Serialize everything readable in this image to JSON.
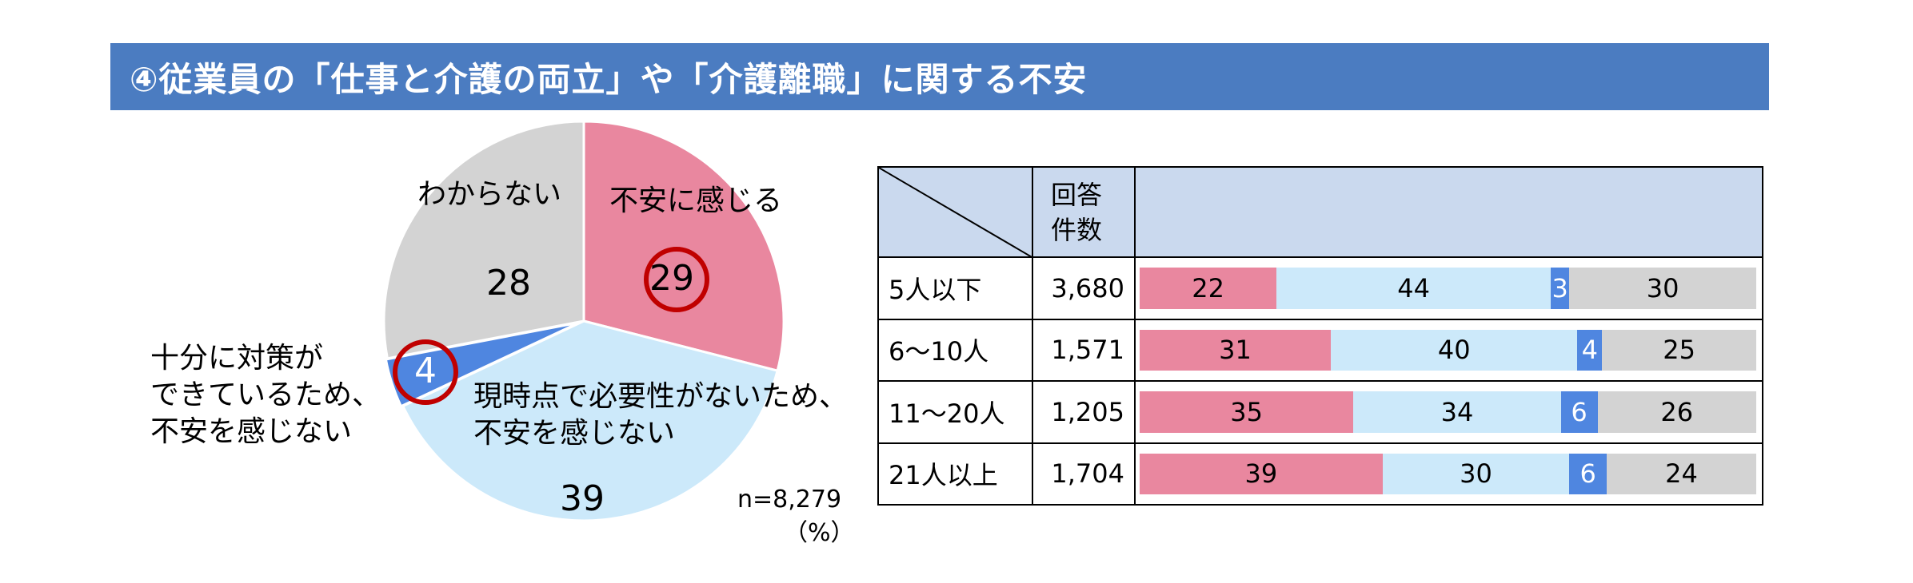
{
  "title": "④従業員の「仕事と介護の両立」や「介護離職」に関する不安",
  "colors": {
    "title_bg": "#4b7cc1",
    "anxious": "#e9879f",
    "not_now": "#cce9fa",
    "sufficient": "#4f86e0",
    "unknown": "#d3d3d3",
    "highlight_ring": "#c00000",
    "table_header": "#cad9ee"
  },
  "chart_data": [
    {
      "type": "pie",
      "n_label": "n=8,279",
      "unit": "（%）",
      "slices": [
        {
          "key": "anxious",
          "label": "不安に感じる",
          "value": 29,
          "color": "#e9879f",
          "highlighted": true
        },
        {
          "key": "not_now",
          "label": "現時点で必要性がないため、\n不安を感じない",
          "value": 39,
          "color": "#cce9fa",
          "highlighted": false
        },
        {
          "key": "sufficient",
          "label": "十分に対策が\nできているため、\n不安を感じない",
          "value": 4,
          "color": "#4f86e0",
          "highlighted": true
        },
        {
          "key": "unknown",
          "label": "わからない",
          "value": 28,
          "color": "#d3d3d3",
          "highlighted": false
        }
      ]
    },
    {
      "type": "bar",
      "stacked": true,
      "orientation": "horizontal",
      "header": {
        "count": "回答\n件数"
      },
      "series_order": [
        "anxious",
        "not_now",
        "sufficient",
        "unknown"
      ],
      "rows": [
        {
          "label": "5人以下",
          "count": "3,680",
          "values": [
            22,
            44,
            3,
            30
          ]
        },
        {
          "label": "6～10人",
          "count": "1,571",
          "values": [
            31,
            40,
            4,
            25
          ]
        },
        {
          "label": "11～20人",
          "count": "1,205",
          "values": [
            35,
            34,
            6,
            26
          ]
        },
        {
          "label": "21人以上",
          "count": "1,704",
          "values": [
            39,
            30,
            6,
            24
          ]
        }
      ]
    }
  ]
}
